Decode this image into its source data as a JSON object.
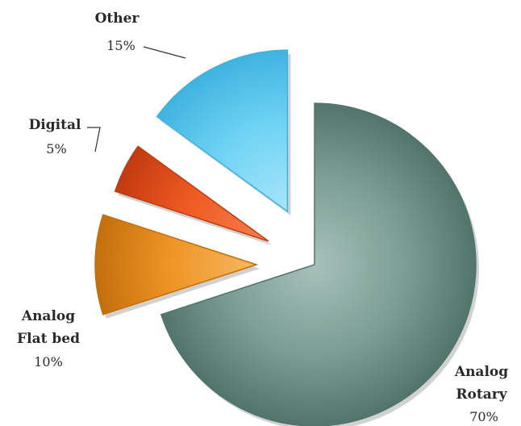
{
  "chart_data": {
    "type": "pie",
    "slices": [
      {
        "category": "Analog Rotary",
        "label_lines": [
          "Analog",
          "Rotary"
        ],
        "value": 70,
        "value_label": "70%",
        "color": "#7c9e94",
        "color_dark": "#52756b",
        "color_light": "#a6c2ba"
      },
      {
        "category": "Analog Flat bed",
        "label_lines": [
          "Analog",
          "Flat bed"
        ],
        "value": 10,
        "value_label": "10%",
        "color": "#ee9424",
        "color_dark": "#c46f0e",
        "color_light": "#f7b860"
      },
      {
        "category": "Digital",
        "label_lines": [
          "Digital"
        ],
        "value": 5,
        "value_label": "5%",
        "color": "#ef5a22",
        "color_dark": "#c23a10",
        "color_light": "#f5804e"
      },
      {
        "category": "Other",
        "label_lines": [
          "Other"
        ],
        "value": 15,
        "value_label": "15%",
        "color": "#6fd3f4",
        "color_dark": "#3fb3e0",
        "color_light": "#a8e6fa"
      }
    ],
    "legend": "none"
  }
}
